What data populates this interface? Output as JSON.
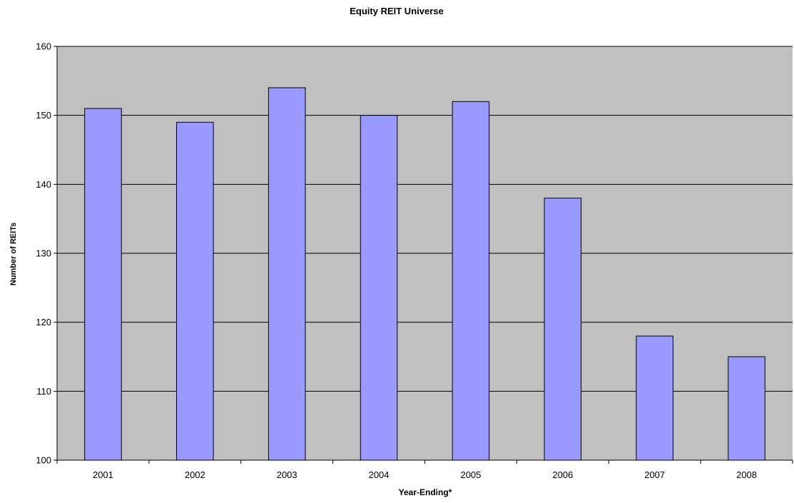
{
  "chart_data": {
    "type": "bar",
    "title": "Equity REIT Universe",
    "xlabel": "Year-Ending*",
    "ylabel": "Number of REITs",
    "categories": [
      "2001",
      "2002",
      "2003",
      "2004",
      "2005",
      "2006",
      "2007",
      "2008"
    ],
    "values": [
      151,
      149,
      154,
      150,
      152,
      138,
      118,
      115
    ],
    "ylim": [
      100,
      160
    ],
    "yticks": [
      100,
      110,
      120,
      130,
      140,
      150,
      160
    ],
    "grid": true,
    "legend": "none",
    "colors": {
      "bar_fill": "#9999ff",
      "bar_stroke": "#000000",
      "plot_background": "#c0c0c0",
      "gridline": "#000000"
    }
  }
}
